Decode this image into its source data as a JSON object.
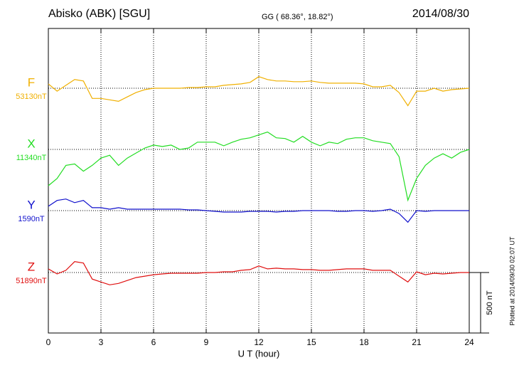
{
  "chart_data": {
    "type": "line",
    "title": "Abisko (ABK)  [SGU]",
    "subtitle": "GG ( 68.36°,  18.82°)",
    "date": "2014/08/30",
    "xlabel": "U T (hour)",
    "note": "Plotted at 2014/09/30 02:07 UT",
    "xlim": [
      0,
      24
    ],
    "xticks": [
      0,
      3,
      6,
      9,
      12,
      15,
      18,
      21,
      24
    ],
    "grid": true,
    "scale_bar": {
      "value": 500,
      "label": "500 nT"
    },
    "x": [
      0,
      0.5,
      1,
      1.5,
      2,
      2.5,
      3,
      3.5,
      4,
      4.5,
      5,
      5.5,
      6,
      6.5,
      7,
      7.5,
      8,
      8.5,
      9,
      9.5,
      10,
      10.5,
      11,
      11.5,
      12,
      12.5,
      13,
      13.5,
      14,
      14.5,
      15,
      15.5,
      16,
      16.5,
      17,
      17.5,
      18,
      18.5,
      19,
      19.5,
      20,
      20.5,
      21,
      21.5,
      22,
      22.5,
      23,
      23.5,
      24
    ],
    "series": [
      {
        "name": "F",
        "color": "#f0b000",
        "baseline": {
          "value": 53130,
          "label": "53130nT"
        },
        "values": [
          53166,
          53106,
          53154,
          53202,
          53190,
          53046,
          53046,
          53034,
          53022,
          53058,
          53094,
          53118,
          53130,
          53130,
          53130,
          53130,
          53136,
          53136,
          53142,
          53142,
          53154,
          53160,
          53166,
          53178,
          53226,
          53202,
          53190,
          53190,
          53184,
          53184,
          53190,
          53178,
          53172,
          53172,
          53172,
          53172,
          53166,
          53142,
          53142,
          53154,
          53094,
          52986,
          53106,
          53106,
          53130,
          53106,
          53118,
          53124,
          53130
        ]
      },
      {
        "name": "X",
        "color": "#22dd22",
        "baseline": {
          "value": 11340,
          "label": "11340nT"
        },
        "values": [
          11040,
          11100,
          11208,
          11220,
          11160,
          11208,
          11268,
          11292,
          11208,
          11268,
          11310,
          11352,
          11376,
          11364,
          11376,
          11340,
          11352,
          11400,
          11400,
          11400,
          11370,
          11400,
          11424,
          11436,
          11460,
          11484,
          11436,
          11430,
          11400,
          11448,
          11400,
          11370,
          11400,
          11388,
          11424,
          11436,
          11436,
          11412,
          11400,
          11388,
          11280,
          10920,
          11100,
          11208,
          11268,
          11304,
          11268,
          11316,
          11340
        ]
      },
      {
        "name": "Y",
        "color": "#1010cc",
        "baseline": {
          "value": 1590,
          "label": "1590nT"
        },
        "values": [
          1626,
          1674,
          1686,
          1656,
          1674,
          1614,
          1614,
          1602,
          1614,
          1602,
          1602,
          1602,
          1602,
          1602,
          1602,
          1602,
          1596,
          1596,
          1590,
          1584,
          1578,
          1578,
          1578,
          1584,
          1584,
          1584,
          1578,
          1584,
          1584,
          1590,
          1590,
          1590,
          1590,
          1584,
          1584,
          1590,
          1590,
          1584,
          1590,
          1602,
          1566,
          1494,
          1590,
          1584,
          1590,
          1590,
          1590,
          1590,
          1590
        ]
      },
      {
        "name": "Z",
        "color": "#e01010",
        "baseline": {
          "value": 51890,
          "label": "51890nT"
        },
        "values": [
          51920,
          51878,
          51908,
          51980,
          51968,
          51836,
          51812,
          51788,
          51800,
          51824,
          51848,
          51860,
          51872,
          51878,
          51884,
          51884,
          51884,
          51884,
          51890,
          51890,
          51896,
          51896,
          51908,
          51914,
          51944,
          51920,
          51926,
          51920,
          51920,
          51914,
          51914,
          51908,
          51908,
          51914,
          51920,
          51920,
          51920,
          51908,
          51908,
          51908,
          51860,
          51812,
          51896,
          51872,
          51884,
          51878,
          51884,
          51890,
          51890
        ]
      }
    ]
  }
}
